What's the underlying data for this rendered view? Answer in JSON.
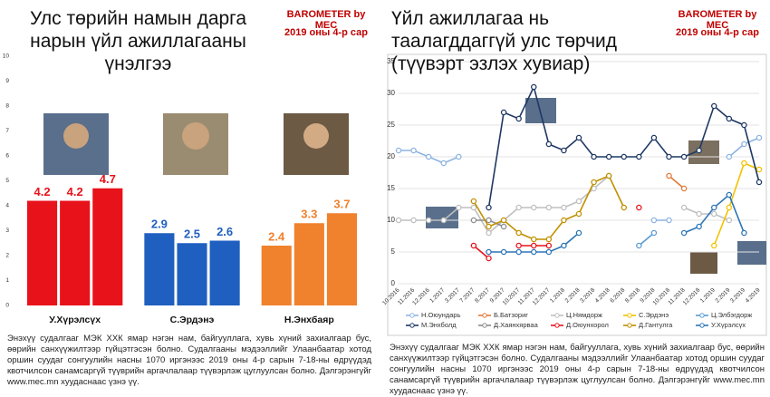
{
  "chart_data": [
    {
      "type": "bar",
      "title": "Улс төрийн намын дарга нарын үйл ажиллагааны үнэлгээ",
      "brand": "BAROMETER by MEC",
      "subtitle": "2019 оны 4-р сар",
      "categories": [
        "У.Хүрэлсүх",
        "С.Эрдэнэ",
        "Н.Энхбаяр"
      ],
      "groups": [
        {
          "color": "#e8121b",
          "values": [
            4.2,
            4.2,
            4.7
          ]
        },
        {
          "color": "#1f5fbf",
          "values": [
            2.9,
            2.5,
            2.6
          ]
        },
        {
          "color": "#f0812d",
          "values": [
            2.4,
            3.3,
            3.7
          ]
        }
      ],
      "ylim": [
        0,
        10
      ],
      "yticks": [
        0,
        1,
        2,
        3,
        4,
        5,
        6,
        7,
        8,
        9,
        10
      ],
      "grid": false,
      "note": "Энэхүү судалгааг МЭК ХХК ямар нэгэн нам, байгууллага, хувь хүний захиалгаар бус, өөрийн санхүүжилтээр гүйцэтгэсэн болно. Судалгааны мэдээллийг Улаанбаатар хотод оршин суудаг сонгуулийн насны 1070 иргэнээс 2019 оны 4-р сарын 7-18-ны өдрүүдэд квотчилсон санамсаргүй түүврийн аргачлалаар түүвэрлэж цуглуулсан болно. Дэлгэрэнгүйг www.mec.mn хуудаснаас үзнэ үү."
    },
    {
      "type": "line",
      "title": "Үйл ажиллагаа нь таалагддаггүй улс төрчид (түүвэрт эзлэх хувиар)",
      "brand": "BAROMETER by MEC",
      "subtitle": "2019 оны 4-р сар",
      "categories": [
        "10.2016",
        "11.2016",
        "12.2016",
        "1.2017",
        "3.2017",
        "7.2017",
        "8.2017",
        "9.2017",
        "10.2017",
        "11.2017",
        "12.2017",
        "1.2018",
        "2.2018",
        "3.2018",
        "4.2018",
        "6.2018",
        "8.2018",
        "9.2018",
        "10.2018",
        "11.2018",
        "12.2018",
        "1.2019",
        "2.2019",
        "3.2019",
        "4.2019"
      ],
      "series": [
        {
          "name": "Н.Оюундарь",
          "color": "#8db4e2",
          "values": [
            21,
            21,
            20,
            19,
            20,
            null,
            null,
            null,
            null,
            null,
            null,
            null,
            null,
            null,
            null,
            null,
            null,
            10,
            10,
            null,
            null,
            null,
            20,
            22,
            23
          ]
        },
        {
          "name": "Б.Батзориг",
          "color": "#e07b39",
          "values": [
            null,
            null,
            null,
            null,
            null,
            null,
            null,
            null,
            null,
            null,
            null,
            null,
            null,
            null,
            null,
            null,
            null,
            null,
            17,
            15,
            null,
            null,
            null,
            null,
            null
          ]
        },
        {
          "name": "Ц.Нямдорж",
          "color": "#bfbfbf",
          "values": [
            10,
            10,
            10,
            10,
            12,
            12,
            8,
            10,
            12,
            12,
            12,
            12,
            13,
            15,
            17,
            null,
            null,
            null,
            null,
            12,
            11,
            11,
            10,
            null,
            null
          ]
        },
        {
          "name": "С.Эрдэнэ",
          "color": "#f2c200",
          "values": [
            null,
            null,
            null,
            null,
            null,
            null,
            null,
            null,
            null,
            null,
            null,
            null,
            null,
            null,
            null,
            null,
            null,
            null,
            null,
            null,
            null,
            6,
            12,
            19,
            18
          ]
        },
        {
          "name": "Ц.Элбэгдорж",
          "color": "#5b9bd5",
          "values": [
            null,
            null,
            null,
            null,
            null,
            null,
            null,
            null,
            null,
            null,
            null,
            null,
            null,
            null,
            null,
            null,
            6,
            8,
            null,
            null,
            null,
            null,
            null,
            null,
            null
          ]
        },
        {
          "name": "М.Энхболд",
          "color": "#1f3864",
          "values": [
            null,
            null,
            null,
            null,
            null,
            null,
            12,
            27,
            26,
            31,
            22,
            21,
            23,
            20,
            20,
            20,
            20,
            23,
            20,
            20,
            21,
            28,
            26,
            25,
            16
          ]
        },
        {
          "name": "Д.Хаянхярваа",
          "color": "#8c8c8c",
          "values": [
            null,
            null,
            null,
            null,
            null,
            10,
            10,
            9,
            null,
            null,
            null,
            null,
            null,
            null,
            null,
            null,
            null,
            null,
            null,
            null,
            null,
            null,
            null,
            null,
            null
          ]
        },
        {
          "name": "Д.Оюунхорол",
          "color": "#e8121b",
          "values": [
            null,
            null,
            null,
            null,
            null,
            6,
            4,
            null,
            6,
            6,
            6,
            null,
            null,
            null,
            null,
            null,
            12,
            null,
            null,
            null,
            null,
            null,
            null,
            null,
            null
          ]
        },
        {
          "name": "Д.Гантулга",
          "color": "#c09000",
          "values": [
            null,
            null,
            null,
            null,
            null,
            13,
            9,
            10,
            8,
            7,
            7,
            10,
            11,
            16,
            17,
            12,
            null,
            null,
            null,
            null,
            null,
            null,
            null,
            null,
            null
          ]
        },
        {
          "name": "У.Хүрэлсүх",
          "color": "#2e75b6",
          "values": [
            null,
            null,
            null,
            null,
            null,
            null,
            5,
            5,
            5,
            5,
            5,
            6,
            8,
            null,
            null,
            null,
            null,
            null,
            null,
            8,
            9,
            12,
            14,
            8,
            null
          ]
        }
      ],
      "ylim": [
        0,
        35
      ],
      "yticks": [
        0,
        5,
        10,
        15,
        20,
        25,
        30,
        35
      ],
      "grid": true,
      "note": "Энэхүү судалгааг МЭК ХХК ямар нэгэн нам, байгууллага, хувь хүний захиалгаар бус, өөрийн санхүүжилтээр гүйцэтгэсэн болно. Судалгааны мэдээллийг Улаанбаатар хотод оршин суудаг сонгуулийн насны 1070 иргэнээс 2019 оны 4-р сарын 7-18-ны өдрүүдэд квотчилсон санамсаргүй түүврийн аргачлалаар түүвэрлэж цуглуулсан болно. Дэлгэрэнгүйг www.mec.mn хуудаснаас үзнэ үү."
    }
  ]
}
